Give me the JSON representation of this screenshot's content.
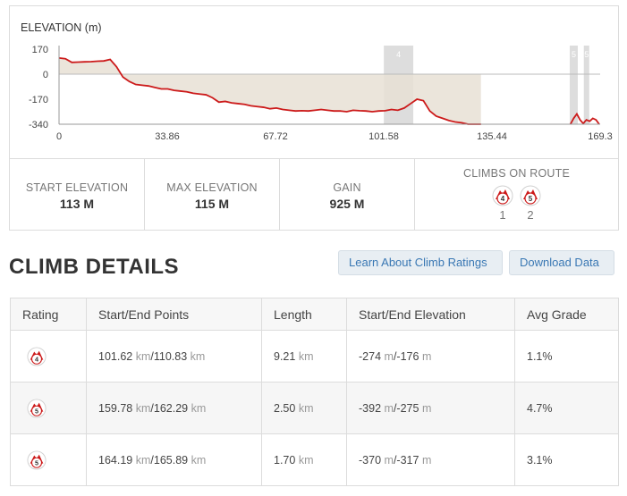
{
  "elevation_chart": {
    "title": "ELEVATION (m)",
    "y_ticks": [
      "170",
      "0",
      "-170",
      "-340"
    ],
    "x_ticks": [
      "0",
      "33.86",
      "67.72",
      "101.58",
      "135.44",
      "169.3"
    ],
    "climb_band_labels": [
      "4",
      "5",
      "5"
    ],
    "colors": {
      "line": "#cc1a1a",
      "fill": "#e7e1d5",
      "band": "#d9d9d9"
    }
  },
  "chart_data": {
    "type": "area",
    "title": "ELEVATION (m)",
    "xlabel": "",
    "ylabel": "",
    "xlim": [
      0,
      169.3
    ],
    "ylim": [
      -340,
      170
    ],
    "x": [
      0,
      2,
      4,
      6,
      8,
      10,
      12,
      14,
      16,
      18,
      20,
      22,
      24,
      26,
      28,
      30,
      32,
      34,
      36,
      38,
      40,
      42,
      44,
      46,
      48,
      50,
      52,
      54,
      56,
      58,
      60,
      62,
      64,
      66,
      68,
      70,
      72,
      74,
      76,
      78,
      80,
      82,
      84,
      86,
      88,
      90,
      92,
      94,
      96,
      98,
      100,
      102,
      104,
      106,
      108,
      110,
      112,
      114,
      116,
      118,
      120,
      122,
      124,
      126,
      128,
      130,
      132
    ],
    "values": [
      110,
      105,
      80,
      82,
      84,
      85,
      88,
      90,
      100,
      50,
      -20,
      -50,
      -70,
      -75,
      -80,
      -90,
      -100,
      -100,
      -110,
      -115,
      -120,
      -130,
      -135,
      -140,
      -160,
      -190,
      -185,
      -195,
      -200,
      -205,
      -215,
      -220,
      -225,
      -235,
      -230,
      -240,
      -245,
      -250,
      -248,
      -250,
      -245,
      -240,
      -245,
      -250,
      -250,
      -255,
      -245,
      -248,
      -250,
      -255,
      -250,
      -248,
      -240,
      -245,
      -230,
      -200,
      -170,
      -180,
      -250,
      -285,
      -300,
      -315,
      -325,
      -330,
      -340,
      -340,
      -340
    ],
    "series2_x": [
      160,
      161,
      162,
      163,
      164,
      165,
      166,
      167,
      168,
      169
    ],
    "series2_values": [
      -340,
      -300,
      -270,
      -310,
      -335,
      -310,
      -320,
      -300,
      -310,
      -340
    ],
    "climb_bands": [
      {
        "label": "4",
        "start_km": 101.62,
        "end_km": 110.83
      },
      {
        "label": "5",
        "start_km": 159.78,
        "end_km": 162.29
      },
      {
        "label": "5",
        "start_km": 164.19,
        "end_km": 165.89
      }
    ]
  },
  "stats": {
    "start_elevation_label": "START ELEVATION",
    "start_elevation_value": "113 M",
    "max_elevation_label": "MAX ELEVATION",
    "max_elevation_value": "115 M",
    "gain_label": "GAIN",
    "gain_value": "925 M",
    "climbs_label": "CLIMBS ON ROUTE",
    "climbs": [
      {
        "rating": "4",
        "index": "1"
      },
      {
        "rating": "5",
        "index": "2"
      }
    ]
  },
  "climb_details": {
    "title": "CLIMB DETAILS",
    "learn_button": "Learn About Climb Ratings",
    "download_button": "Download Data",
    "columns": [
      "Rating",
      "Start/End Points",
      "Length",
      "Start/End Elevation",
      "Avg Grade"
    ],
    "rows": [
      {
        "rating": "4",
        "start_km": "101.62",
        "end_km": "110.83",
        "length": "9.21",
        "start_elev": "-274",
        "end_elev": "-176",
        "grade": "1.1%"
      },
      {
        "rating": "5",
        "start_km": "159.78",
        "end_km": "162.29",
        "length": "2.50",
        "start_elev": "-392",
        "end_elev": "-275",
        "grade": "4.7%"
      },
      {
        "rating": "5",
        "start_km": "164.19",
        "end_km": "165.89",
        "length": "1.70",
        "start_elev": "-370",
        "end_elev": "-317",
        "grade": "3.1%"
      }
    ],
    "units": {
      "km": "km",
      "m": "m"
    }
  }
}
